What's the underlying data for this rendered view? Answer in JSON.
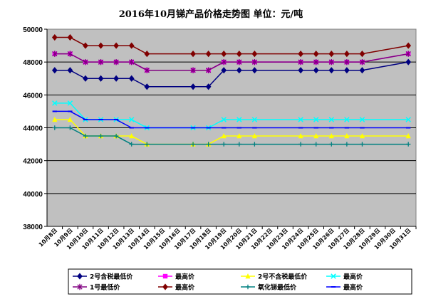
{
  "chart_data": {
    "type": "line",
    "title": "2016年10月锑产品价格走势图 单位：元/吨",
    "xlabel": "",
    "ylabel": "",
    "ylim": [
      38000,
      50000
    ],
    "yticks": [
      38000,
      40000,
      42000,
      44000,
      46000,
      48000,
      50000
    ],
    "grid": true,
    "legend_position": "bottom",
    "colors": {
      "plot_background": "#c0c0c0",
      "gridline": "#000000"
    },
    "categories": [
      "10月8日",
      "10月9日",
      "10月10日",
      "10月11日",
      "10月12日",
      "10月13日",
      "10月14日",
      "10月15日",
      "10月16日",
      "10月17日",
      "10月18日",
      "10月19日",
      "10月20日",
      "10月21日",
      "10月22日",
      "10月23日",
      "10月24日",
      "10月25日",
      "10月26日",
      "10月27日",
      "10月28日",
      "10月29日",
      "10月30日",
      "10月31日"
    ],
    "series": [
      {
        "name": "2号含税最低价",
        "color": "#000080",
        "marker": "diamond",
        "values": [
          47500,
          47500,
          47000,
          47000,
          47000,
          47000,
          46500,
          null,
          null,
          46500,
          46500,
          47500,
          47500,
          47500,
          null,
          null,
          47500,
          47500,
          47500,
          47500,
          47500,
          null,
          null,
          48000
        ]
      },
      {
        "name": "最高价",
        "color": "#ff00ff",
        "marker": "square",
        "values": [
          48500,
          48500,
          48000,
          48000,
          48000,
          48000,
          47500,
          null,
          null,
          47500,
          47500,
          48000,
          48000,
          48000,
          null,
          null,
          48000,
          48000,
          48000,
          48000,
          48000,
          null,
          null,
          48500
        ]
      },
      {
        "name": "2号不含税最低价",
        "color": "#ffff00",
        "marker": "triangle",
        "values": [
          44500,
          44500,
          43500,
          43500,
          43500,
          43500,
          43000,
          null,
          null,
          43000,
          43000,
          43500,
          43500,
          43500,
          null,
          null,
          43500,
          43500,
          43500,
          43500,
          43500,
          null,
          null,
          43500
        ]
      },
      {
        "name": "最高价",
        "color": "#00ffff",
        "marker": "x",
        "values": [
          45500,
          45500,
          44500,
          44500,
          44500,
          44500,
          44000,
          null,
          null,
          44000,
          44000,
          44500,
          44500,
          44500,
          null,
          null,
          44500,
          44500,
          44500,
          44500,
          44500,
          null,
          null,
          44500
        ]
      },
      {
        "name": "1号最低价",
        "color": "#800080",
        "marker": "star",
        "values": [
          48500,
          48500,
          48000,
          48000,
          48000,
          48000,
          47500,
          null,
          null,
          47500,
          47500,
          48000,
          48000,
          48000,
          null,
          null,
          48000,
          48000,
          48000,
          48000,
          48000,
          null,
          null,
          48500
        ]
      },
      {
        "name": "最高价",
        "color": "#800000",
        "marker": "diamond",
        "values": [
          49500,
          49500,
          49000,
          49000,
          49000,
          49000,
          48500,
          null,
          null,
          48500,
          48500,
          48500,
          48500,
          48500,
          null,
          null,
          48500,
          48500,
          48500,
          48500,
          48500,
          null,
          null,
          49000
        ]
      },
      {
        "name": "氧化锑最低价",
        "color": "#008080",
        "marker": "plus",
        "values": [
          44000,
          44000,
          43500,
          43500,
          43500,
          43000,
          43000,
          null,
          null,
          43000,
          43000,
          43000,
          43000,
          43000,
          null,
          null,
          43000,
          43000,
          43000,
          43000,
          43000,
          null,
          null,
          43000
        ]
      },
      {
        "name": "最高价",
        "color": "#0000ff",
        "marker": "dash",
        "values": [
          45000,
          45000,
          44500,
          44500,
          44500,
          44000,
          44000,
          null,
          null,
          44000,
          44000,
          44000,
          44000,
          44000,
          null,
          null,
          44000,
          44000,
          44000,
          44000,
          44000,
          null,
          null,
          44000
        ]
      }
    ]
  }
}
